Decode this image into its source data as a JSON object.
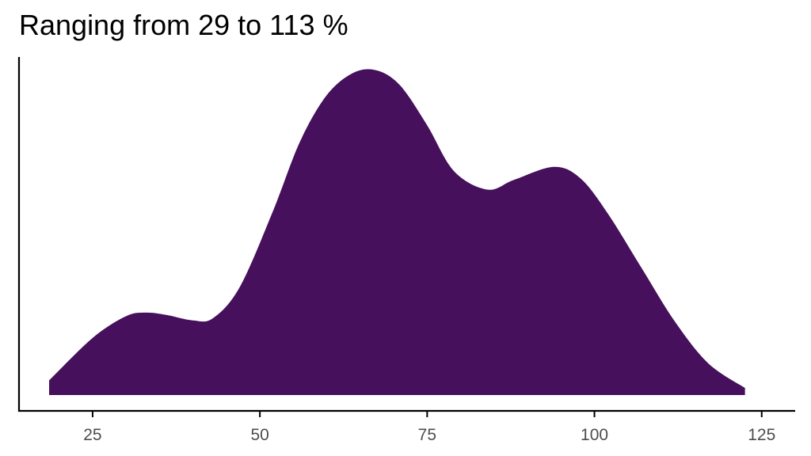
{
  "chart_data": {
    "type": "area",
    "title": "Ranging from 29 to 113 %",
    "xlabel": "",
    "ylabel": "",
    "xlim": [
      14,
      130
    ],
    "ylim": [
      0,
      1
    ],
    "grid": false,
    "x_ticks": [
      25,
      50,
      75,
      100,
      125
    ],
    "x_tick_labels": [
      "25",
      "50",
      "75",
      "100",
      "125"
    ],
    "series": [
      {
        "x": [
          18.5,
          25,
          30,
          33,
          36,
          40,
          43,
          47,
          52,
          56,
          60,
          64,
          67.5,
          71,
          75,
          79,
          84,
          88,
          94,
          98,
          102,
          107,
          112,
          117,
          122.5
        ],
        "y": [
          0.045,
          0.176,
          0.243,
          0.254,
          0.247,
          0.23,
          0.237,
          0.333,
          0.569,
          0.781,
          0.924,
          0.993,
          1.0,
          0.953,
          0.831,
          0.69,
          0.633,
          0.663,
          0.703,
          0.666,
          0.559,
          0.393,
          0.227,
          0.098,
          0.022
        ],
        "fill": "#46105C"
      }
    ],
    "colors": {
      "fill": "#46105C",
      "axis": "#000000",
      "tick_label": "#4d4d4d"
    }
  }
}
